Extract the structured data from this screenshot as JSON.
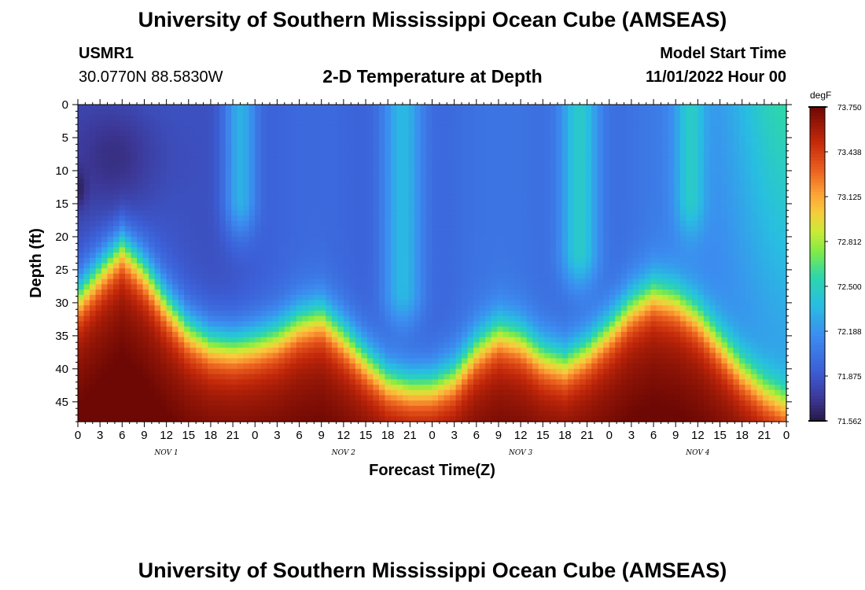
{
  "header": {
    "title": "University of Southern Mississippi Ocean Cube (AMSEAS)",
    "station_id": "USMR1",
    "station_coords": "30.0770N  88.5830W",
    "plot_title": "2-D Temperature at Depth",
    "model_start_label": "Model Start Time",
    "model_start_value": "11/01/2022 Hour 00"
  },
  "footer": {
    "title": "University of Southern Mississippi Ocean Cube (AMSEAS)"
  },
  "chart_data": {
    "type": "heatmap",
    "title": "2-D Temperature at Depth",
    "xlabel": "Forecast Time(Z)",
    "ylabel": "Depth (ft)",
    "x_range_hours": [
      0,
      96
    ],
    "x_ticks": [
      {
        "hour": 0,
        "label": "0"
      },
      {
        "hour": 3,
        "label": "3"
      },
      {
        "hour": 6,
        "label": "6"
      },
      {
        "hour": 9,
        "label": "9"
      },
      {
        "hour": 12,
        "label": "12"
      },
      {
        "hour": 15,
        "label": "15"
      },
      {
        "hour": 18,
        "label": "18"
      },
      {
        "hour": 21,
        "label": "21"
      },
      {
        "hour": 24,
        "label": "0"
      },
      {
        "hour": 27,
        "label": "3"
      },
      {
        "hour": 30,
        "label": "6"
      },
      {
        "hour": 33,
        "label": "9"
      },
      {
        "hour": 36,
        "label": "12"
      },
      {
        "hour": 39,
        "label": "15"
      },
      {
        "hour": 42,
        "label": "18"
      },
      {
        "hour": 45,
        "label": "21"
      },
      {
        "hour": 48,
        "label": "0"
      },
      {
        "hour": 51,
        "label": "3"
      },
      {
        "hour": 54,
        "label": "6"
      },
      {
        "hour": 57,
        "label": "9"
      },
      {
        "hour": 60,
        "label": "12"
      },
      {
        "hour": 63,
        "label": "15"
      },
      {
        "hour": 66,
        "label": "18"
      },
      {
        "hour": 69,
        "label": "21"
      },
      {
        "hour": 72,
        "label": "0"
      },
      {
        "hour": 75,
        "label": "3"
      },
      {
        "hour": 78,
        "label": "6"
      },
      {
        "hour": 81,
        "label": "9"
      },
      {
        "hour": 84,
        "label": "12"
      },
      {
        "hour": 87,
        "label": "15"
      },
      {
        "hour": 90,
        "label": "18"
      },
      {
        "hour": 93,
        "label": "21"
      },
      {
        "hour": 96,
        "label": "0"
      }
    ],
    "day_labels": [
      {
        "hour": 12,
        "label": "NOV 1"
      },
      {
        "hour": 36,
        "label": "NOV 2"
      },
      {
        "hour": 60,
        "label": "NOV 3"
      },
      {
        "hour": 84,
        "label": "NOV 4"
      }
    ],
    "y_range_ft": [
      0,
      48
    ],
    "y_ticks": [
      {
        "value": 0,
        "label": "0"
      },
      {
        "value": 5,
        "label": "5"
      },
      {
        "value": 10,
        "label": "10"
      },
      {
        "value": 15,
        "label": "15"
      },
      {
        "value": 20,
        "label": "20"
      },
      {
        "value": 25,
        "label": "25"
      },
      {
        "value": 30,
        "label": "30"
      },
      {
        "value": 35,
        "label": "35"
      },
      {
        "value": 40,
        "label": "40"
      },
      {
        "value": 45,
        "label": "45"
      }
    ],
    "colorbar": {
      "unit": "degF",
      "min": 71.562,
      "max": 73.75,
      "tick_labels": [
        "73.750",
        "73.438",
        "73.125",
        "72.812",
        "72.500",
        "72.188",
        "71.875",
        "71.562"
      ]
    },
    "thermocline_depth_ft": [
      {
        "hour": 0,
        "depth": 29
      },
      {
        "hour": 3,
        "depth": 25
      },
      {
        "hour": 6,
        "depth": 21
      },
      {
        "hour": 9,
        "depth": 25
      },
      {
        "hour": 12,
        "depth": 30
      },
      {
        "hour": 15,
        "depth": 34
      },
      {
        "hour": 18,
        "depth": 36
      },
      {
        "hour": 21,
        "depth": 36.5
      },
      {
        "hour": 24,
        "depth": 36
      },
      {
        "hour": 27,
        "depth": 35
      },
      {
        "hour": 30,
        "depth": 33
      },
      {
        "hour": 33,
        "depth": 32
      },
      {
        "hour": 36,
        "depth": 35
      },
      {
        "hour": 39,
        "depth": 38.5
      },
      {
        "hour": 42,
        "depth": 41.5
      },
      {
        "hour": 45,
        "depth": 42.5
      },
      {
        "hour": 48,
        "depth": 42.5
      },
      {
        "hour": 51,
        "depth": 41
      },
      {
        "hour": 54,
        "depth": 37
      },
      {
        "hour": 57,
        "depth": 34.5
      },
      {
        "hour": 60,
        "depth": 35.5
      },
      {
        "hour": 63,
        "depth": 38
      },
      {
        "hour": 66,
        "depth": 39
      },
      {
        "hour": 69,
        "depth": 37
      },
      {
        "hour": 72,
        "depth": 34
      },
      {
        "hour": 75,
        "depth": 30.5
      },
      {
        "hour": 78,
        "depth": 28.5
      },
      {
        "hour": 81,
        "depth": 29.5
      },
      {
        "hour": 84,
        "depth": 32
      },
      {
        "hour": 87,
        "depth": 36
      },
      {
        "hour": 90,
        "depth": 40
      },
      {
        "hour": 93,
        "depth": 43
      },
      {
        "hour": 96,
        "depth": 45
      }
    ],
    "warm_upper_plumes": [
      {
        "hour": 22,
        "width_h": 2.2,
        "depth_extent_ft": 14,
        "amplitude_degF": 0.45
      },
      {
        "hour": 44,
        "width_h": 2.8,
        "depth_extent_ft": 28,
        "amplitude_degF": 0.45
      },
      {
        "hour": 68,
        "width_h": 2.6,
        "depth_extent_ft": 22,
        "amplitude_degF": 0.5
      },
      {
        "hour": 83,
        "width_h": 2.0,
        "depth_extent_ft": 14,
        "amplitude_degF": 0.35
      }
    ],
    "cold_core": {
      "hour": 5,
      "depth_ft": 8,
      "value_degF": 71.6
    }
  }
}
